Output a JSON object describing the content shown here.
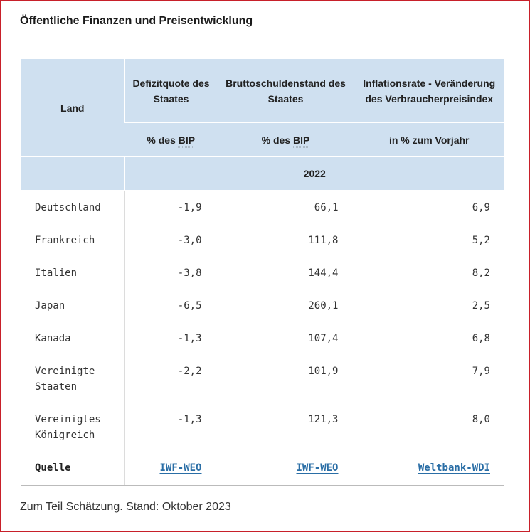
{
  "title": "Öffentliche Finanzen und Preisentwicklung",
  "header": {
    "land": "Land",
    "col1": {
      "label": "Defizitquote des Staates",
      "unit_pre": "% des ",
      "unit_abbr": "BIP"
    },
    "col2": {
      "label": "Bruttoschuldenstand des Staates",
      "unit_pre": "% des ",
      "unit_abbr": "BIP"
    },
    "col3": {
      "label": "Inflationsrate - Veränderung des Verbraucherpreisindex",
      "unit": "in % zum Vorjahr"
    },
    "year": "2022"
  },
  "rows": [
    {
      "land": "Deutschland",
      "defizit": "-1,9",
      "schulden": "66,1",
      "inflation": "6,9"
    },
    {
      "land": "Frankreich",
      "defizit": "-3,0",
      "schulden": "111,8",
      "inflation": "5,2"
    },
    {
      "land": "Italien",
      "defizit": "-3,8",
      "schulden": "144,4",
      "inflation": "8,2"
    },
    {
      "land": "Japan",
      "defizit": "-6,5",
      "schulden": "260,1",
      "inflation": "2,5"
    },
    {
      "land": "Kanada",
      "defizit": "-1,3",
      "schulden": "107,4",
      "inflation": "6,8"
    },
    {
      "land": "Vereinigte Staaten",
      "defizit": "-2,2",
      "schulden": "101,9",
      "inflation": "7,9"
    },
    {
      "land": "Vereinigtes Königreich",
      "defizit": "-1,3",
      "schulden": "121,3",
      "inflation": "8,0"
    }
  ],
  "source": {
    "label": "Quelle",
    "col1": "IWF-WEO",
    "col2": "IWF-WEO",
    "col3": "Weltbank-WDI"
  },
  "note": "Zum Teil Schätzung. Stand: Oktober 2023"
}
